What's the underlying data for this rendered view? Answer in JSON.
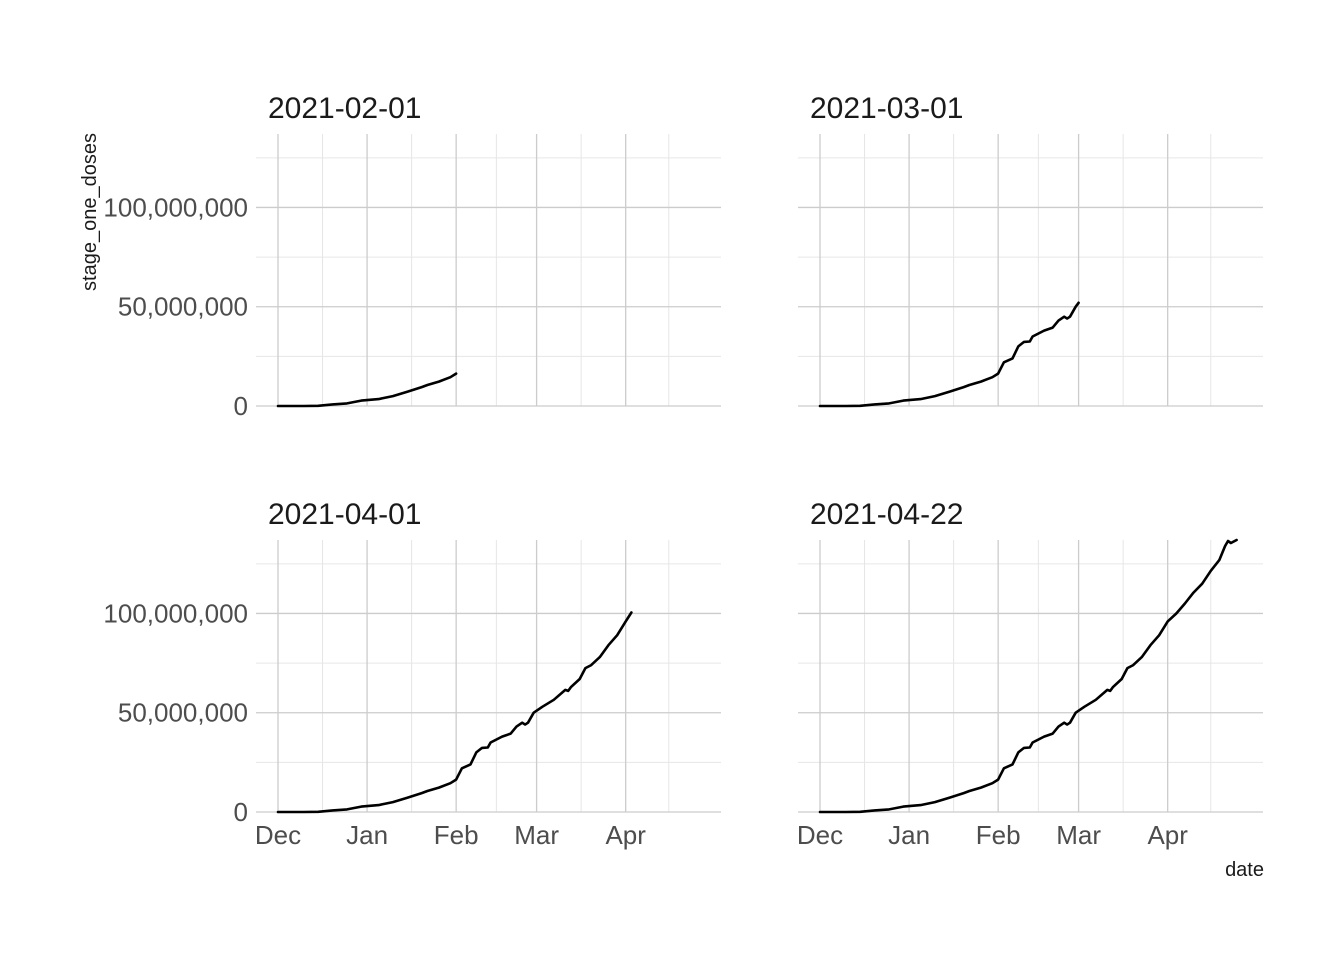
{
  "chart_data": {
    "type": "line",
    "layout": "facet_wrap 2x2",
    "x_label": "date",
    "y_label": "stage_one_doses",
    "x_type": "date",
    "xlim": [
      "2020-12-01",
      "2021-04-30"
    ],
    "ylim": [
      0,
      137000000
    ],
    "x_ticks": [
      {
        "label": "Dec",
        "date": "2020-12-01"
      },
      {
        "label": "Jan",
        "date": "2021-01-01"
      },
      {
        "label": "Feb",
        "date": "2021-02-01"
      },
      {
        "label": "Mar",
        "date": "2021-03-01"
      },
      {
        "label": "Apr",
        "date": "2021-04-01"
      }
    ],
    "y_ticks": [
      {
        "label": "0",
        "value": 0
      },
      {
        "label": "50,000,000",
        "value": 50000000
      },
      {
        "label": "100,000,000",
        "value": 100000000
      }
    ],
    "grid": true,
    "legend": "none",
    "line_color": "#000000",
    "panels": [
      {
        "title": "2021-02-01",
        "points": [
          [
            "2020-12-01",
            0
          ],
          [
            "2020-12-10",
            0
          ],
          [
            "2020-12-15",
            100000
          ],
          [
            "2020-12-20",
            800000
          ],
          [
            "2020-12-25",
            1300000
          ],
          [
            "2020-12-30",
            2700000
          ],
          [
            "2021-01-05",
            3500000
          ],
          [
            "2021-01-10",
            5000000
          ],
          [
            "2021-01-15",
            7200000
          ],
          [
            "2021-01-20",
            9500000
          ],
          [
            "2021-01-22",
            10600000
          ],
          [
            "2021-01-26",
            12300000
          ],
          [
            "2021-01-30",
            14500000
          ],
          [
            "2021-02-01",
            16300000
          ]
        ]
      },
      {
        "title": "2021-03-01",
        "points": [
          [
            "2020-12-01",
            0
          ],
          [
            "2020-12-10",
            0
          ],
          [
            "2020-12-15",
            100000
          ],
          [
            "2020-12-20",
            800000
          ],
          [
            "2020-12-25",
            1300000
          ],
          [
            "2020-12-30",
            2700000
          ],
          [
            "2021-01-05",
            3500000
          ],
          [
            "2021-01-10",
            5000000
          ],
          [
            "2021-01-15",
            7200000
          ],
          [
            "2021-01-20",
            9500000
          ],
          [
            "2021-01-22",
            10600000
          ],
          [
            "2021-01-26",
            12300000
          ],
          [
            "2021-01-30",
            14500000
          ],
          [
            "2021-02-01",
            16300000
          ],
          [
            "2021-02-03",
            22000000
          ],
          [
            "2021-02-06",
            24000000
          ],
          [
            "2021-02-08",
            30000000
          ],
          [
            "2021-02-10",
            32300000
          ],
          [
            "2021-02-12",
            32500000
          ],
          [
            "2021-02-13",
            35000000
          ],
          [
            "2021-02-17",
            38000000
          ],
          [
            "2021-02-20",
            39500000
          ],
          [
            "2021-02-22",
            43000000
          ],
          [
            "2021-02-24",
            45000000
          ],
          [
            "2021-02-25",
            44000000
          ],
          [
            "2021-02-26",
            45000000
          ],
          [
            "2021-02-28",
            50000000
          ],
          [
            "2021-03-01",
            52000000
          ]
        ]
      },
      {
        "title": "2021-04-01",
        "points": [
          [
            "2020-12-01",
            0
          ],
          [
            "2020-12-10",
            0
          ],
          [
            "2020-12-15",
            100000
          ],
          [
            "2020-12-20",
            800000
          ],
          [
            "2020-12-25",
            1300000
          ],
          [
            "2020-12-30",
            2700000
          ],
          [
            "2021-01-05",
            3500000
          ],
          [
            "2021-01-10",
            5000000
          ],
          [
            "2021-01-15",
            7200000
          ],
          [
            "2021-01-20",
            9500000
          ],
          [
            "2021-01-22",
            10600000
          ],
          [
            "2021-01-26",
            12300000
          ],
          [
            "2021-01-30",
            14500000
          ],
          [
            "2021-02-01",
            16300000
          ],
          [
            "2021-02-03",
            22000000
          ],
          [
            "2021-02-06",
            24000000
          ],
          [
            "2021-02-08",
            30000000
          ],
          [
            "2021-02-10",
            32300000
          ],
          [
            "2021-02-12",
            32500000
          ],
          [
            "2021-02-13",
            35000000
          ],
          [
            "2021-02-17",
            38000000
          ],
          [
            "2021-02-20",
            39500000
          ],
          [
            "2021-02-22",
            43000000
          ],
          [
            "2021-02-24",
            45000000
          ],
          [
            "2021-02-25",
            44000000
          ],
          [
            "2021-02-26",
            45000000
          ],
          [
            "2021-02-28",
            50000000
          ],
          [
            "2021-03-03",
            53000000
          ],
          [
            "2021-03-07",
            56500000
          ],
          [
            "2021-03-11",
            61500000
          ],
          [
            "2021-03-12",
            61000000
          ],
          [
            "2021-03-13",
            63000000
          ],
          [
            "2021-03-16",
            67000000
          ],
          [
            "2021-03-18",
            72500000
          ],
          [
            "2021-03-20",
            74000000
          ],
          [
            "2021-03-23",
            78000000
          ],
          [
            "2021-03-26",
            84000000
          ],
          [
            "2021-03-29",
            89000000
          ],
          [
            "2021-04-01",
            96000000
          ],
          [
            "2021-04-03",
            100500000
          ]
        ]
      },
      {
        "title": "2021-04-22",
        "points": [
          [
            "2020-12-01",
            0
          ],
          [
            "2020-12-10",
            0
          ],
          [
            "2020-12-15",
            100000
          ],
          [
            "2020-12-20",
            800000
          ],
          [
            "2020-12-25",
            1300000
          ],
          [
            "2020-12-30",
            2700000
          ],
          [
            "2021-01-05",
            3500000
          ],
          [
            "2021-01-10",
            5000000
          ],
          [
            "2021-01-15",
            7200000
          ],
          [
            "2021-01-20",
            9500000
          ],
          [
            "2021-01-22",
            10600000
          ],
          [
            "2021-01-26",
            12300000
          ],
          [
            "2021-01-30",
            14500000
          ],
          [
            "2021-02-01",
            16300000
          ],
          [
            "2021-02-03",
            22000000
          ],
          [
            "2021-02-06",
            24000000
          ],
          [
            "2021-02-08",
            30000000
          ],
          [
            "2021-02-10",
            32300000
          ],
          [
            "2021-02-12",
            32500000
          ],
          [
            "2021-02-13",
            35000000
          ],
          [
            "2021-02-17",
            38000000
          ],
          [
            "2021-02-20",
            39500000
          ],
          [
            "2021-02-22",
            43000000
          ],
          [
            "2021-02-24",
            45000000
          ],
          [
            "2021-02-25",
            44000000
          ],
          [
            "2021-02-26",
            45000000
          ],
          [
            "2021-02-28",
            50000000
          ],
          [
            "2021-03-03",
            53000000
          ],
          [
            "2021-03-07",
            56500000
          ],
          [
            "2021-03-11",
            61500000
          ],
          [
            "2021-03-12",
            61000000
          ],
          [
            "2021-03-13",
            63000000
          ],
          [
            "2021-03-16",
            67000000
          ],
          [
            "2021-03-18",
            72500000
          ],
          [
            "2021-03-20",
            74000000
          ],
          [
            "2021-03-23",
            78000000
          ],
          [
            "2021-03-26",
            84000000
          ],
          [
            "2021-03-29",
            89000000
          ],
          [
            "2021-04-01",
            96000000
          ],
          [
            "2021-04-04",
            100000000
          ],
          [
            "2021-04-07",
            105000000
          ],
          [
            "2021-04-10",
            110500000
          ],
          [
            "2021-04-13",
            115000000
          ],
          [
            "2021-04-16",
            121500000
          ],
          [
            "2021-04-19",
            127000000
          ],
          [
            "2021-04-21",
            134000000
          ],
          [
            "2021-04-22",
            136500000
          ],
          [
            "2021-04-23",
            135500000
          ],
          [
            "2021-04-25",
            137000000
          ]
        ]
      }
    ]
  }
}
